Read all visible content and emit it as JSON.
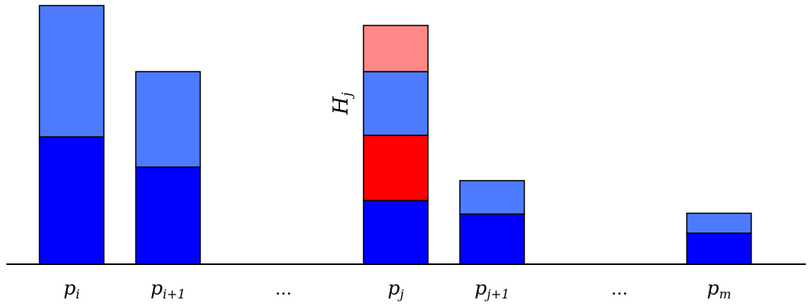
{
  "colors": {
    "dark_blue": "#0000ff",
    "light_blue": "#4d7bff",
    "red": "#ff0000",
    "light_red": "#ff8888",
    "outline": "#000000",
    "axis": "#000000"
  },
  "columns": [
    {
      "label": {
        "base": "p",
        "sub": "i"
      },
      "segments": [
        {
          "color": "dark_blue",
          "value": 160
        },
        {
          "color": "light_blue",
          "value": 165
        }
      ]
    },
    {
      "label": {
        "base": "p",
        "sub": "i+1"
      },
      "segments": [
        {
          "color": "dark_blue",
          "value": 122
        },
        {
          "color": "light_blue",
          "value": 120
        }
      ]
    },
    {
      "label": {
        "dots": "..."
      }
    },
    {
      "label": {
        "base": "p",
        "sub": "j"
      },
      "segments": [
        {
          "color": "dark_blue",
          "value": 80
        },
        {
          "color": "red",
          "value": 82
        },
        {
          "color": "light_blue",
          "value": 80
        },
        {
          "color": "light_red",
          "value": 58
        }
      ],
      "brace_label": {
        "base": "H",
        "sub": "j"
      }
    },
    {
      "label": {
        "base": "p",
        "sub": "j+1"
      },
      "segments": [
        {
          "color": "dark_blue",
          "value": 63
        },
        {
          "color": "light_blue",
          "value": 42
        }
      ]
    },
    {
      "label": {
        "dots": "..."
      }
    },
    {
      "label": {
        "base": "p",
        "sub": "m"
      },
      "segments": [
        {
          "color": "dark_blue",
          "value": 39
        },
        {
          "color": "light_blue",
          "value": 25
        }
      ]
    }
  ]
}
